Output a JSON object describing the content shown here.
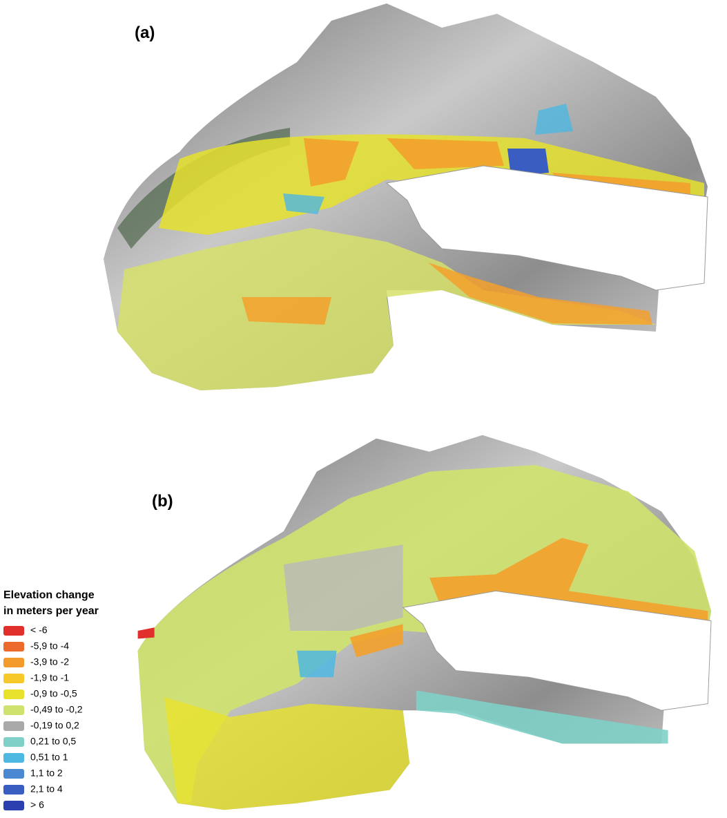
{
  "panels": [
    {
      "label": "(a)"
    },
    {
      "label": "(b)"
    }
  ],
  "legend": {
    "title_lines": [
      "Elevation change",
      "in meters per year"
    ],
    "items": [
      {
        "label": "< -6",
        "color": "#e1302b"
      },
      {
        "label": "-5,9 to -4",
        "color": "#ec6a2c"
      },
      {
        "label": "-3,9 to -2",
        "color": "#f39a2c"
      },
      {
        "label": "-1,9 to -1",
        "color": "#f6c82a"
      },
      {
        "label": "-0,9 to -0,5",
        "color": "#e8e22c"
      },
      {
        "label": "-0,49 to -0,2",
        "color": "#cfe26e"
      },
      {
        "label": "-0,19 to 0,2",
        "color": "#a9a9a9"
      },
      {
        "label": "0,21 to 0,5",
        "color": "#80d0c8"
      },
      {
        "label": "0,51 to 1",
        "color": "#4db8e2"
      },
      {
        "label": "1,1 to 2",
        "color": "#4a88d2"
      },
      {
        "label": "2,1 to 4",
        "color": "#3a5dc2"
      },
      {
        "label": "> 6",
        "color": "#2b3fae"
      }
    ]
  }
}
